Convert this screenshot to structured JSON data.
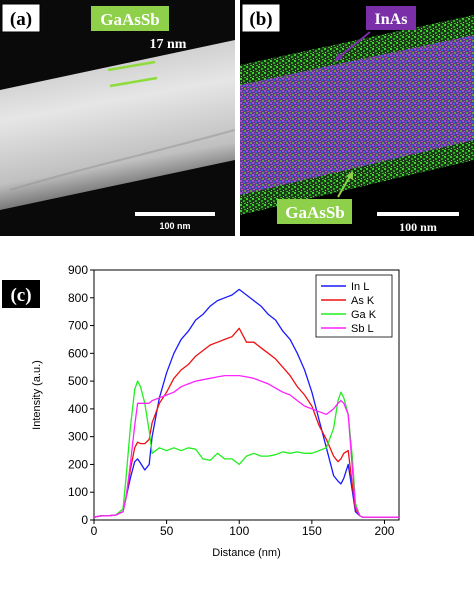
{
  "panel_a": {
    "tag": "(a)",
    "material_label": "GaAsSb",
    "thickness_label": "17 nm",
    "scale_bar_label": "100 nm"
  },
  "panel_b": {
    "tag": "(b)",
    "core_label": "InAs",
    "shell_label": "GaAsSb",
    "scale_bar_label": "100 nm"
  },
  "panel_c": {
    "tag": "(c)"
  },
  "colors": {
    "in_l": "#1a1aff",
    "as_k": "#ee1111",
    "ga_k": "#22ee22",
    "sb_l": "#ff22ff",
    "label_box": "#8ed04a",
    "inas_box": "#7a2fa8"
  },
  "chart_data": {
    "type": "line",
    "title": "",
    "xlabel": "Distance (nm)",
    "ylabel": "Intensity (a.u.)",
    "xlim": [
      0,
      210
    ],
    "ylim": [
      0,
      900
    ],
    "xticks": [
      0,
      50,
      100,
      150,
      200
    ],
    "yticks": [
      0,
      100,
      200,
      300,
      400,
      500,
      600,
      700,
      800,
      900
    ],
    "legend_position": "top-right",
    "x": [
      0,
      5,
      10,
      15,
      20,
      22,
      25,
      28,
      30,
      32,
      35,
      38,
      40,
      45,
      50,
      55,
      60,
      65,
      70,
      75,
      80,
      85,
      90,
      95,
      100,
      105,
      110,
      115,
      120,
      125,
      130,
      135,
      140,
      145,
      150,
      155,
      160,
      165,
      168,
      170,
      172,
      175,
      178,
      180,
      183,
      185,
      190,
      200,
      210
    ],
    "series": [
      {
        "name": "In L",
        "color": "#1a1aff",
        "values": [
          10,
          15,
          15,
          18,
          30,
          80,
          150,
          210,
          220,
          205,
          180,
          200,
          300,
          440,
          530,
          600,
          650,
          680,
          720,
          740,
          770,
          790,
          800,
          810,
          830,
          810,
          790,
          770,
          740,
          720,
          680,
          650,
          600,
          540,
          460,
          360,
          260,
          160,
          140,
          130,
          150,
          200,
          100,
          30,
          15,
          10,
          10,
          10,
          10
        ]
      },
      {
        "name": "As K",
        "color": "#ee1111",
        "values": [
          10,
          15,
          15,
          18,
          30,
          80,
          180,
          260,
          280,
          275,
          275,
          290,
          350,
          420,
          460,
          510,
          540,
          560,
          590,
          610,
          630,
          640,
          650,
          660,
          690,
          640,
          640,
          620,
          600,
          580,
          550,
          520,
          480,
          450,
          410,
          340,
          290,
          230,
          210,
          220,
          240,
          250,
          120,
          40,
          15,
          10,
          10,
          10,
          10
        ]
      },
      {
        "name": "Ga K",
        "color": "#22ee22",
        "values": [
          10,
          15,
          15,
          18,
          40,
          150,
          330,
          470,
          500,
          480,
          420,
          320,
          240,
          260,
          250,
          260,
          250,
          260,
          255,
          220,
          215,
          240,
          220,
          220,
          200,
          230,
          240,
          230,
          230,
          235,
          245,
          240,
          245,
          240,
          240,
          250,
          260,
          330,
          430,
          460,
          440,
          380,
          220,
          60,
          15,
          10,
          10,
          10,
          10
        ]
      },
      {
        "name": "Sb L",
        "color": "#ff22ff",
        "values": [
          10,
          15,
          15,
          18,
          30,
          80,
          200,
          340,
          420,
          420,
          420,
          420,
          430,
          440,
          450,
          460,
          480,
          490,
          500,
          505,
          510,
          515,
          520,
          520,
          520,
          515,
          510,
          500,
          490,
          475,
          460,
          450,
          430,
          410,
          400,
          390,
          380,
          400,
          420,
          430,
          420,
          380,
          180,
          50,
          15,
          10,
          10,
          10,
          10
        ]
      }
    ]
  }
}
